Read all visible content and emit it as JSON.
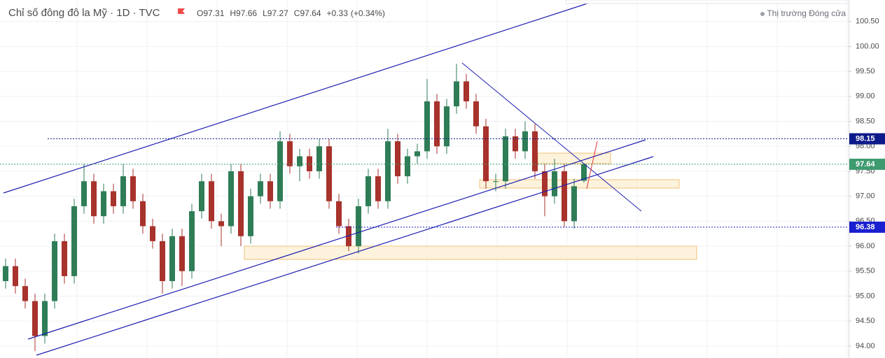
{
  "chart_data": {
    "type": "candlestick",
    "title": "Chỉ số đông đô la Mỹ · 1D · TVC",
    "ohlc_legend": [
      {
        "label": "O",
        "value": 97.31
      },
      {
        "label": "H",
        "value": 97.66
      },
      {
        "label": "L",
        "value": 97.27
      },
      {
        "label": "C",
        "value": 97.64
      }
    ],
    "change": "+0.33",
    "change_pct": "(+0.34%)",
    "market_status": "Thị trường Đóng cửa",
    "up_color": "#2e7d57",
    "down_color": "#a8322c",
    "grid": true,
    "ylim": [
      93.76,
      100.93
    ],
    "yticks": [
      {
        "value": 94,
        "label": "94.00"
      },
      {
        "value": 94.5,
        "label": "94.50"
      },
      {
        "value": 95,
        "label": "95.00"
      },
      {
        "value": 95.5,
        "label": "95.50"
      },
      {
        "value": 96,
        "label": "96.00"
      },
      {
        "value": 96.5,
        "label": "96.50"
      },
      {
        "value": 97,
        "label": "97.00"
      },
      {
        "value": 97.5,
        "label": "97.50"
      },
      {
        "value": 98,
        "label": "98.00"
      },
      {
        "value": 98.5,
        "label": "98.50"
      },
      {
        "value": 99,
        "label": "99.00"
      },
      {
        "value": 99.5,
        "label": "99.50"
      },
      {
        "value": 100,
        "label": "100.00"
      },
      {
        "value": 100.5,
        "label": "100.50"
      }
    ],
    "price_lines": [
      {
        "value": 98.15,
        "color": "#0d1b8a"
      },
      {
        "value": 97.64,
        "color": "#3e9b70"
      },
      {
        "value": 96.38,
        "color": "#1a1fd0"
      }
    ],
    "categories": [
      null,
      null,
      null,
      null,
      null,
      null,
      null,
      null,
      null,
      null,
      null,
      null,
      null,
      null,
      null,
      null,
      null,
      null,
      null,
      null,
      null,
      null,
      null,
      null,
      null,
      null,
      null,
      null,
      null,
      null,
      null,
      null,
      null,
      null,
      null,
      null,
      null,
      null,
      null,
      null,
      null,
      null,
      null,
      null,
      null,
      null,
      null,
      null,
      null,
      null,
      null,
      null,
      null,
      null,
      null,
      null,
      null,
      null,
      null,
      null
    ],
    "open": [
      95.3,
      95.6,
      95.2,
      94.9,
      94.2,
      94.9,
      96.1,
      95.4,
      96.8,
      97.3,
      96.6,
      97.1,
      96.8,
      97.4,
      96.9,
      96.4,
      96.1,
      95.3,
      96.2,
      95.5,
      96.7,
      97.3,
      96.5,
      96.4,
      97.5,
      96.2,
      97.0,
      97.3,
      96.9,
      98.1,
      97.6,
      97.8,
      97.5,
      98.0,
      96.9,
      96.4,
      96.0,
      96.8,
      97.4,
      96.9,
      98.1,
      97.4,
      97.8,
      97.9,
      98.9,
      98.0,
      98.8,
      99.3,
      98.9,
      98.4,
      97.3,
      97.3,
      98.2,
      97.9,
      98.3,
      97.5,
      97.0,
      97.5,
      96.5,
      97.31
    ],
    "high": [
      95.75,
      95.75,
      95.35,
      95.05,
      95.05,
      96.25,
      96.25,
      96.95,
      97.65,
      97.45,
      97.25,
      97.25,
      97.65,
      97.55,
      97.05,
      96.55,
      96.25,
      96.35,
      96.35,
      96.85,
      97.45,
      97.45,
      96.65,
      97.65,
      97.65,
      97.15,
      97.45,
      97.45,
      98.3,
      98.25,
      97.95,
      97.95,
      98.15,
      98.15,
      97.05,
      96.55,
      96.95,
      97.55,
      97.55,
      98.35,
      98.25,
      97.95,
      98.05,
      99.35,
      99.05,
      98.95,
      99.65,
      99.45,
      99.05,
      98.55,
      97.45,
      98.35,
      98.35,
      98.5,
      98.45,
      97.65,
      97.75,
      97.65,
      97.35,
      97.66
    ],
    "low": [
      95.15,
      95.05,
      94.75,
      93.9,
      94.05,
      94.75,
      95.25,
      95.25,
      96.65,
      96.45,
      96.45,
      96.65,
      96.65,
      96.75,
      96.25,
      95.95,
      95.05,
      95.15,
      95.2,
      95.35,
      96.55,
      96.35,
      96.0,
      96.25,
      96.0,
      96.05,
      96.85,
      96.75,
      96.75,
      97.45,
      97.3,
      97.35,
      97.35,
      96.75,
      96.25,
      95.9,
      95.85,
      96.65,
      96.75,
      96.75,
      97.25,
      97.25,
      97.65,
      97.75,
      97.85,
      97.85,
      98.65,
      98.75,
      98.25,
      97.15,
      97.1,
      97.15,
      97.75,
      97.75,
      97.35,
      96.6,
      96.85,
      96.38,
      96.35,
      97.27
    ],
    "close": [
      95.6,
      95.2,
      94.9,
      94.2,
      94.9,
      96.1,
      95.4,
      96.8,
      97.3,
      96.6,
      97.1,
      96.8,
      97.4,
      96.9,
      96.4,
      96.1,
      95.3,
      96.2,
      95.5,
      96.7,
      97.3,
      96.5,
      96.4,
      97.5,
      96.2,
      97.0,
      97.3,
      96.9,
      98.1,
      97.6,
      97.8,
      97.5,
      98.0,
      96.9,
      96.4,
      96.0,
      96.8,
      97.4,
      96.9,
      98.1,
      97.4,
      97.8,
      97.9,
      98.9,
      98.0,
      98.8,
      99.3,
      98.9,
      98.4,
      97.3,
      97.3,
      98.2,
      97.9,
      98.3,
      97.5,
      97.0,
      97.5,
      96.5,
      97.2,
      97.64
    ]
  }
}
